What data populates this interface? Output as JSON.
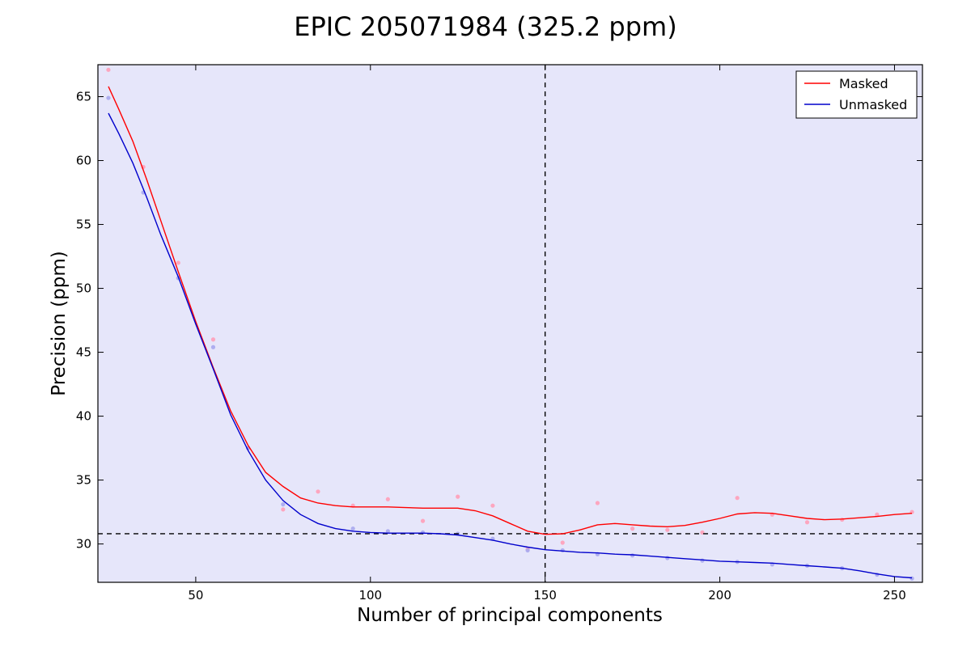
{
  "chart_data": {
    "type": "line",
    "title": "EPIC 205071984 (325.2 ppm)",
    "xlabel": "Number of principal components",
    "ylabel": "Precision (ppm)",
    "xlim": [
      22,
      258
    ],
    "ylim": [
      27,
      67.5
    ],
    "xticks": [
      50,
      100,
      150,
      200,
      250
    ],
    "yticks": [
      30,
      35,
      40,
      45,
      50,
      55,
      60,
      65
    ],
    "background": "#e6e6fa",
    "legend_position": "top-right",
    "vline": 150,
    "hline": 30.8,
    "series": [
      {
        "name": "Masked",
        "color": "#ff0000",
        "point_color": "#ff9eb8",
        "points_x": [
          25,
          35,
          45,
          55,
          65,
          75,
          85,
          95,
          105,
          115,
          125,
          135,
          145,
          155,
          165,
          175,
          185,
          195,
          205,
          215,
          225,
          235,
          245,
          255
        ],
        "points_y": [
          67.1,
          59.5,
          52.0,
          46.0,
          37.5,
          32.7,
          34.1,
          33.0,
          33.5,
          31.8,
          33.7,
          33.0,
          29.6,
          30.1,
          33.2,
          31.2,
          31.1,
          30.9,
          33.6,
          32.3,
          31.7,
          31.9,
          32.3,
          32.5
        ],
        "curve_x": [
          25,
          28,
          32,
          36,
          40,
          45,
          50,
          55,
          60,
          65,
          70,
          75,
          80,
          85,
          90,
          95,
          100,
          105,
          110,
          115,
          120,
          125,
          130,
          135,
          140,
          145,
          150,
          155,
          160,
          165,
          170,
          175,
          180,
          185,
          190,
          195,
          200,
          205,
          210,
          215,
          220,
          225,
          230,
          235,
          240,
          245,
          250,
          255
        ],
        "curve_y": [
          65.8,
          64.0,
          61.5,
          58.5,
          55.3,
          51.3,
          47.4,
          43.8,
          40.4,
          37.7,
          35.6,
          34.5,
          33.6,
          33.2,
          33.0,
          32.9,
          32.9,
          32.9,
          32.85,
          32.8,
          32.8,
          32.8,
          32.6,
          32.2,
          31.6,
          31.0,
          30.75,
          30.8,
          31.1,
          31.5,
          31.6,
          31.5,
          31.4,
          31.35,
          31.45,
          31.7,
          32.0,
          32.35,
          32.45,
          32.4,
          32.2,
          32.0,
          31.9,
          31.95,
          32.05,
          32.15,
          32.3,
          32.4
        ]
      },
      {
        "name": "Unmasked",
        "color": "#0000cc",
        "point_color": "#a7a7ee",
        "points_x": [
          25,
          35,
          45,
          55,
          65,
          75,
          95,
          105,
          115,
          125,
          135,
          145,
          155,
          165,
          175,
          185,
          195,
          205,
          215,
          225,
          235,
          245,
          255
        ],
        "points_y": [
          64.9,
          57.5,
          50.8,
          45.4,
          37.5,
          33.1,
          31.2,
          31.0,
          30.9,
          30.8,
          30.4,
          29.5,
          29.5,
          29.2,
          29.1,
          28.9,
          28.7,
          28.6,
          28.4,
          28.3,
          28.1,
          27.6,
          27.3
        ],
        "curve_x": [
          25,
          28,
          32,
          36,
          40,
          45,
          50,
          55,
          60,
          65,
          70,
          75,
          80,
          85,
          90,
          95,
          100,
          105,
          110,
          115,
          120,
          125,
          130,
          135,
          140,
          145,
          150,
          155,
          160,
          165,
          170,
          175,
          180,
          185,
          190,
          195,
          200,
          205,
          210,
          215,
          220,
          225,
          230,
          235,
          240,
          245,
          250,
          255
        ],
        "curve_y": [
          63.7,
          62.1,
          59.8,
          57.1,
          54.2,
          50.9,
          47.2,
          43.7,
          40.1,
          37.3,
          35.0,
          33.4,
          32.3,
          31.6,
          31.2,
          31.0,
          30.9,
          30.85,
          30.85,
          30.85,
          30.8,
          30.7,
          30.5,
          30.3,
          30.0,
          29.75,
          29.55,
          29.45,
          29.35,
          29.3,
          29.2,
          29.15,
          29.05,
          28.95,
          28.85,
          28.75,
          28.65,
          28.6,
          28.55,
          28.5,
          28.4,
          28.3,
          28.2,
          28.1,
          27.9,
          27.65,
          27.45,
          27.35
        ]
      }
    ]
  }
}
